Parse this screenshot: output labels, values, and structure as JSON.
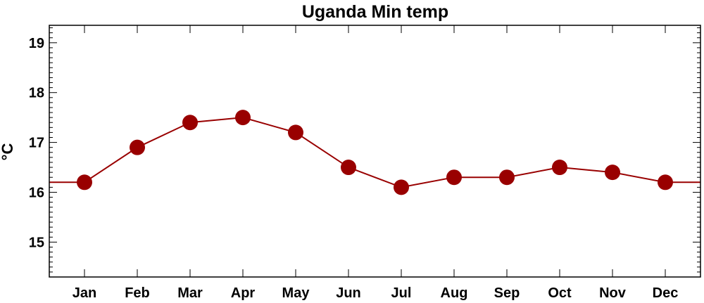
{
  "chart_data": {
    "type": "line",
    "title": "Uganda Min temp",
    "xlabel": "",
    "ylabel": "°C",
    "categories": [
      "Jan",
      "Feb",
      "Mar",
      "Apr",
      "May",
      "Jun",
      "Jul",
      "Aug",
      "Sep",
      "Oct",
      "Nov",
      "Dec"
    ],
    "series": [
      {
        "values": [
          16.2,
          16.9,
          17.4,
          17.5,
          17.2,
          16.5,
          16.1,
          16.3,
          16.3,
          16.5,
          16.4,
          16.2
        ]
      }
    ],
    "ylim": [
      14.3,
      19.35
    ],
    "yticks": [
      "15",
      "16",
      "17",
      "18",
      "19"
    ],
    "grid": false,
    "legend": "none",
    "colors": {
      "series": "#990000",
      "axes": "#000000"
    }
  }
}
